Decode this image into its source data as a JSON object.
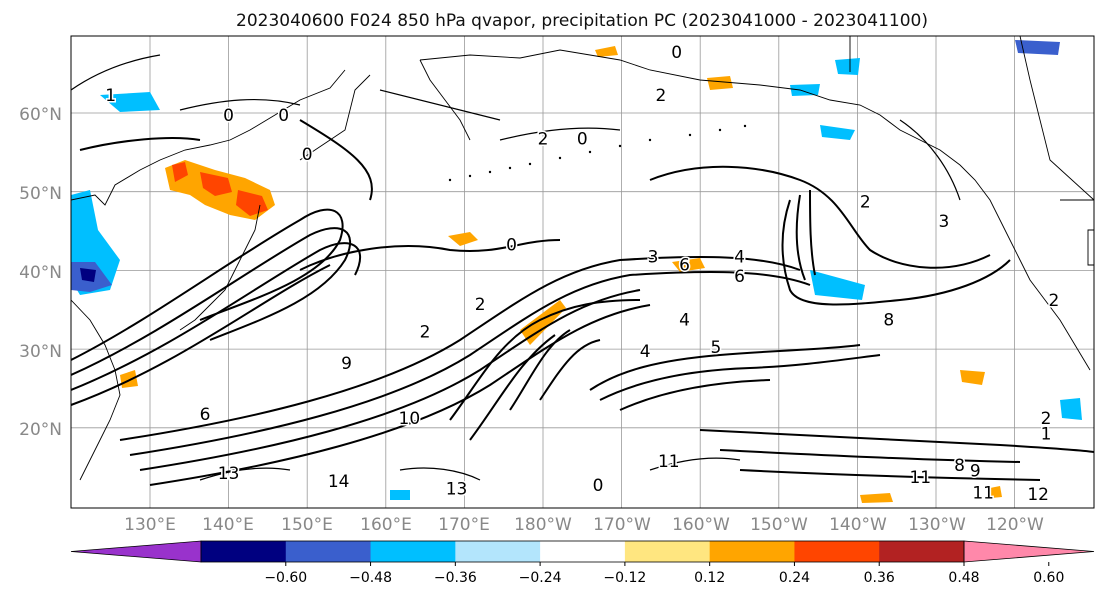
{
  "title": "2023040600 F024 850 hPa qvapor, precipitation PC (2023041000 - 2023041100)",
  "map": {
    "lat_labels": [
      "60°N",
      "50°N",
      "40°N",
      "30°N",
      "20°N"
    ],
    "lon_labels": [
      "130°E",
      "140°E",
      "150°E",
      "160°E",
      "170°E",
      "180°W",
      "170°W",
      "160°W",
      "150°W",
      "140°W",
      "130°W",
      "120°W"
    ],
    "contour_labels": [
      {
        "text": "1",
        "lon": 125,
        "lat": 61.5
      },
      {
        "text": "0",
        "lon": 140,
        "lat": 59
      },
      {
        "text": "0",
        "lon": 147,
        "lat": 59
      },
      {
        "text": "0",
        "lon": 150,
        "lat": 54
      },
      {
        "text": "0",
        "lon": 197,
        "lat": 67
      },
      {
        "text": "2",
        "lon": 180,
        "lat": 56
      },
      {
        "text": "0",
        "lon": 185,
        "lat": 56
      },
      {
        "text": "2",
        "lon": 195,
        "lat": 61.5
      },
      {
        "text": "2",
        "lon": 221,
        "lat": 48
      },
      {
        "text": "3",
        "lon": 231,
        "lat": 45.5
      },
      {
        "text": "0",
        "lon": 176,
        "lat": 42.5
      },
      {
        "text": "3",
        "lon": 194,
        "lat": 41
      },
      {
        "text": "6",
        "lon": 198,
        "lat": 40
      },
      {
        "text": "4",
        "lon": 205,
        "lat": 41
      },
      {
        "text": "6",
        "lon": 205,
        "lat": 38.5
      },
      {
        "text": "4",
        "lon": 198,
        "lat": 33
      },
      {
        "text": "5",
        "lon": 202,
        "lat": 29.5
      },
      {
        "text": "4",
        "lon": 193,
        "lat": 29
      },
      {
        "text": "8",
        "lon": 224,
        "lat": 33
      },
      {
        "text": "2",
        "lon": 165,
        "lat": 31.5
      },
      {
        "text": "2",
        "lon": 172,
        "lat": 35
      },
      {
        "text": "9",
        "lon": 155,
        "lat": 27.5
      },
      {
        "text": "6",
        "lon": 137,
        "lat": 21
      },
      {
        "text": "10",
        "lon": 163,
        "lat": 20.5
      },
      {
        "text": "13",
        "lon": 169,
        "lat": 11.5
      },
      {
        "text": "14",
        "lon": 154,
        "lat": 12.5
      },
      {
        "text": "13",
        "lon": 140,
        "lat": 13.5
      },
      {
        "text": "0",
        "lon": 187,
        "lat": 12
      },
      {
        "text": "11",
        "lon": 196,
        "lat": 15
      },
      {
        "text": "11",
        "lon": 228,
        "lat": 13
      },
      {
        "text": "11",
        "lon": 236,
        "lat": 11
      },
      {
        "text": "8",
        "lon": 233,
        "lat": 14.5
      },
      {
        "text": "9",
        "lon": 235,
        "lat": 13.8
      },
      {
        "text": "2",
        "lon": 244,
        "lat": 20.5
      },
      {
        "text": "1",
        "lon": 244,
        "lat": 18.5
      },
      {
        "text": "2",
        "lon": 245,
        "lat": 35.5
      },
      {
        "text": "12",
        "lon": 243,
        "lat": 10.8
      }
    ]
  },
  "colorbar": {
    "tick_labels": [
      "−0.60",
      "−0.48",
      "−0.36",
      "−0.24",
      "−0.12",
      "0.12",
      "0.24",
      "0.36",
      "0.48",
      "0.60"
    ],
    "colors": [
      "#9932cc",
      "#000080",
      "#3a5fcd",
      "#00bfff",
      "#b3e5fc",
      "#ffffff",
      "#ffe680",
      "#ffa500",
      "#ff4500",
      "#b22222",
      "#ff88aa"
    ]
  }
}
